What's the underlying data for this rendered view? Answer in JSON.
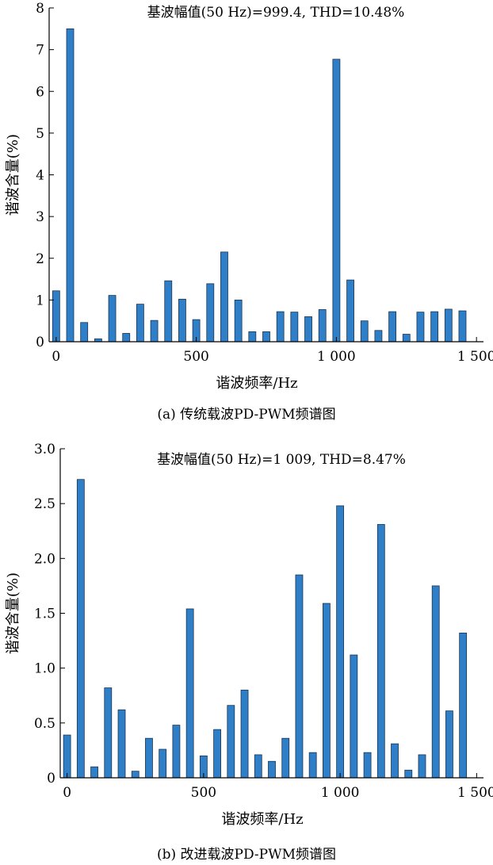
{
  "charts": [
    {
      "caption": "(a) 传统载波PD-PWM频谱图",
      "chart_data": {
        "type": "bar",
        "title": "基波幅值(50 Hz)=999.4,  THD=10.48%",
        "xlabel": "谐波频率/Hz",
        "ylabel": "谐波含量(%)",
        "xlim": [
          -25,
          1525
        ],
        "ylim": [
          0,
          8
        ],
        "xticks": [
          0,
          500,
          1000,
          1500
        ],
        "xtick_labels": [
          "0",
          "500",
          "1 000",
          "1 500"
        ],
        "yticks": [
          0,
          1,
          2,
          3,
          4,
          5,
          6,
          7,
          8
        ],
        "ytick_labels": [
          "0",
          "1",
          "2",
          "3",
          "4",
          "5",
          "6",
          "7",
          "8"
        ],
        "bar_color": "#2f7fc8",
        "grid": false,
        "x": [
          0,
          50,
          100,
          150,
          200,
          250,
          300,
          350,
          400,
          450,
          500,
          550,
          600,
          650,
          700,
          750,
          800,
          850,
          900,
          950,
          1000,
          1050,
          1100,
          1150,
          1200,
          1250,
          1300,
          1350,
          1400,
          1450
        ],
        "values": [
          1.22,
          7.5,
          0.46,
          0.07,
          1.11,
          0.2,
          0.9,
          0.51,
          1.46,
          1.02,
          0.53,
          1.39,
          2.15,
          1.0,
          0.24,
          0.24,
          0.72,
          0.71,
          0.6,
          0.77,
          6.77,
          1.48,
          0.5,
          0.27,
          0.72,
          0.18,
          0.71,
          0.72,
          0.78,
          0.74
        ]
      }
    },
    {
      "caption": "(b) 改进载波PD-PWM频谱图",
      "chart_data": {
        "type": "bar",
        "title": "基波幅值(50 Hz)=1 009,  THD=8.47%",
        "xlabel": "谐波频率/Hz",
        "ylabel": "谐波含量(%)",
        "xlim": [
          -25,
          1525
        ],
        "ylim": [
          0,
          3.0
        ],
        "xticks": [
          0,
          500,
          1000,
          1500
        ],
        "xtick_labels": [
          "0",
          "500",
          "1 000",
          "1 500"
        ],
        "yticks": [
          0,
          0.5,
          1.0,
          1.5,
          2.0,
          2.5,
          3.0
        ],
        "ytick_labels": [
          "0",
          "0.5",
          "1.0",
          "1.5",
          "2.0",
          "2.5",
          "3.0"
        ],
        "bar_color": "#2f7fc8",
        "grid": false,
        "x": [
          0,
          50,
          100,
          150,
          200,
          250,
          300,
          350,
          400,
          450,
          500,
          550,
          600,
          650,
          700,
          750,
          800,
          850,
          900,
          950,
          1000,
          1050,
          1100,
          1150,
          1200,
          1250,
          1300,
          1350,
          1400,
          1450
        ],
        "values": [
          0.39,
          2.72,
          0.1,
          0.82,
          0.62,
          0.06,
          0.36,
          0.26,
          0.48,
          1.54,
          0.2,
          0.44,
          0.66,
          0.8,
          0.21,
          0.15,
          0.36,
          1.85,
          0.23,
          1.59,
          2.48,
          1.12,
          0.23,
          2.31,
          0.31,
          0.07,
          0.21,
          1.75,
          0.61,
          1.32
        ]
      }
    }
  ]
}
